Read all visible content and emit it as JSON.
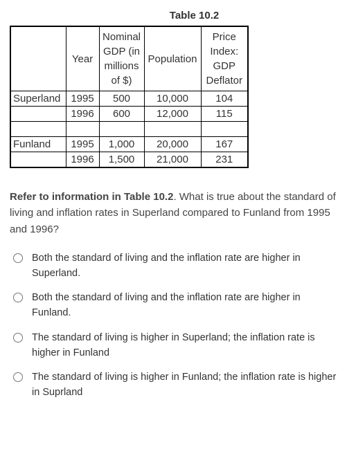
{
  "table": {
    "title": "Table 10.2",
    "columns": [
      {
        "key": "country",
        "label": ""
      },
      {
        "key": "year",
        "label": "Year"
      },
      {
        "key": "gdp",
        "label": "Nominal GDP (in millions of $)"
      },
      {
        "key": "population",
        "label": "Population"
      },
      {
        "key": "price",
        "label": "Price Index: GDP Deflator"
      }
    ],
    "rows": [
      {
        "country": "Superland",
        "year": "1995",
        "gdp": "500",
        "population": "10,000",
        "price": "104"
      },
      {
        "country": "",
        "year": "1996",
        "gdp": "600",
        "population": "12,000",
        "price": "115"
      },
      {
        "blank": true
      },
      {
        "country": "Funland",
        "year": "1995",
        "gdp": "1,000",
        "population": "20,000",
        "price": "167"
      },
      {
        "country": "",
        "year": "1996",
        "gdp": "1,500",
        "population": "21,000",
        "price": "231"
      }
    ],
    "border_color": "#000000",
    "background_color": "#ffffff",
    "fontsize": 15
  },
  "question": {
    "lead_bold": "Refer to information in Table 10.2",
    "rest": ". What is true about the standard of living and inflation rates in Superland compared to Funland from 1995 and 1996?"
  },
  "options": [
    {
      "id": "optA",
      "text": "Both the standard of living and the inflation rate are higher in Superland."
    },
    {
      "id": "optB",
      "text": "Both the standard of living and the inflation rate are higher in Funland."
    },
    {
      "id": "optC",
      "text": "The standard of living is higher in Superland; the inflation rate is higher in Funland"
    },
    {
      "id": "optD",
      "text": "The standard of living is higher in Funland; the inflation rate is higher in Suprland"
    }
  ]
}
